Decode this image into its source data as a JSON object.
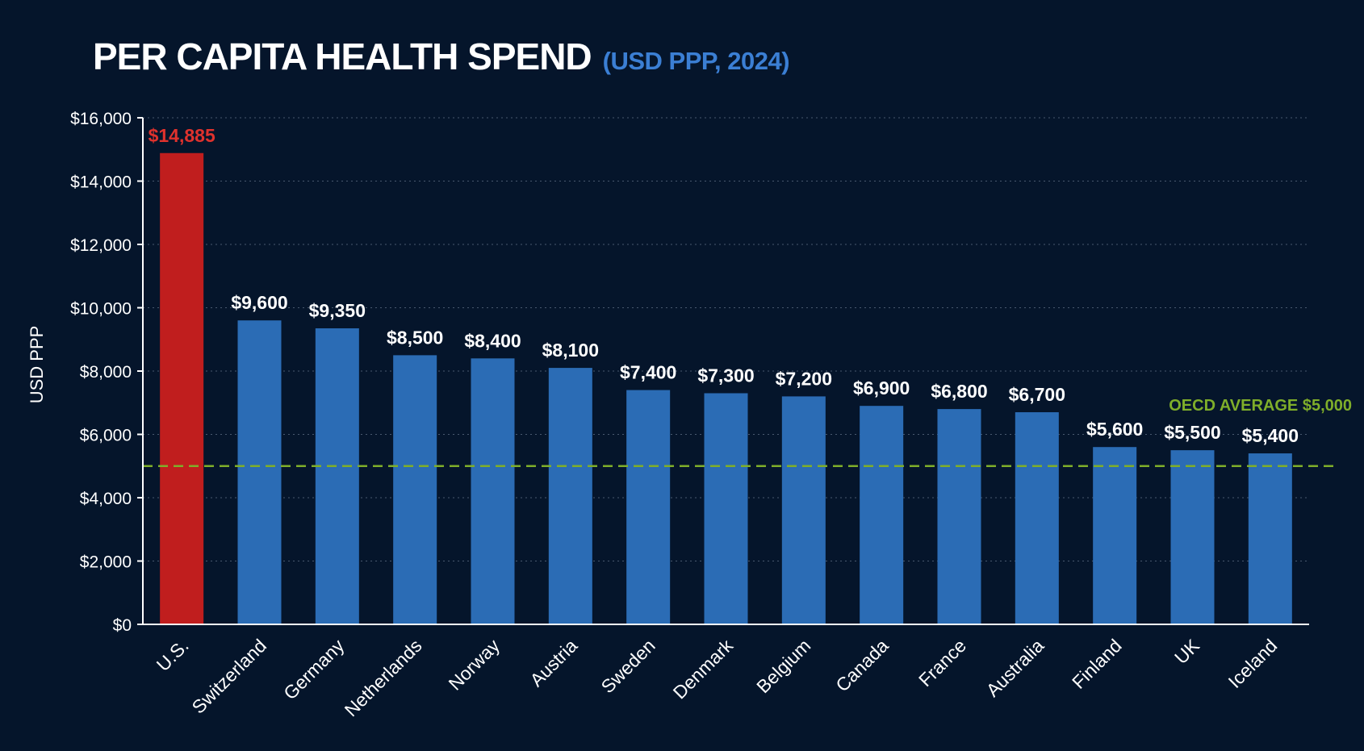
{
  "chart_data": {
    "type": "bar",
    "title": "PER CAPITA HEALTH SPEND",
    "subtitle": "(USD PPP, 2024)",
    "xlabel": "",
    "ylabel": "USD PPP",
    "ylim": [
      0,
      16000
    ],
    "yticks": [
      0,
      2000,
      4000,
      6000,
      8000,
      10000,
      12000,
      14000,
      16000
    ],
    "ytick_labels": [
      "$0",
      "$2,000",
      "$4,000",
      "$6,000",
      "$8,000",
      "$10,000",
      "$12,000",
      "$14,000",
      "$16,000"
    ],
    "grid": "horizontal dotted",
    "categories": [
      "U.S.",
      "Switzerland",
      "Germany",
      "Netherlands",
      "Norway",
      "Austria",
      "Sweden",
      "Denmark",
      "Belgium",
      "Canada",
      "France",
      "Australia",
      "Finland",
      "UK",
      "Iceland"
    ],
    "values": [
      14885,
      9600,
      9350,
      8500,
      8400,
      8100,
      7400,
      7300,
      7200,
      6900,
      6800,
      6700,
      5600,
      5500,
      5400
    ],
    "value_labels": [
      "$14,885",
      "$9,600",
      "$9,350",
      "$8,500",
      "$8,400",
      "$8,100",
      "$7,400",
      "$7,300",
      "$7,200",
      "$6,900",
      "$6,800",
      "$6,700",
      "$5,600",
      "$5,500",
      "$5,400"
    ],
    "highlight_index": 0,
    "reference_line": {
      "value": 5000,
      "label": "OECD AVERAGE $5,000"
    },
    "colors": {
      "background": "#05152b",
      "bar": "#2b6cb5",
      "highlight_bar": "#c01e1e",
      "highlight_label": "#e0322d",
      "subtitle": "#3b7fd4",
      "reference": "#7fae2a",
      "grid": "#5a6a80",
      "text": "#ffffff"
    }
  }
}
